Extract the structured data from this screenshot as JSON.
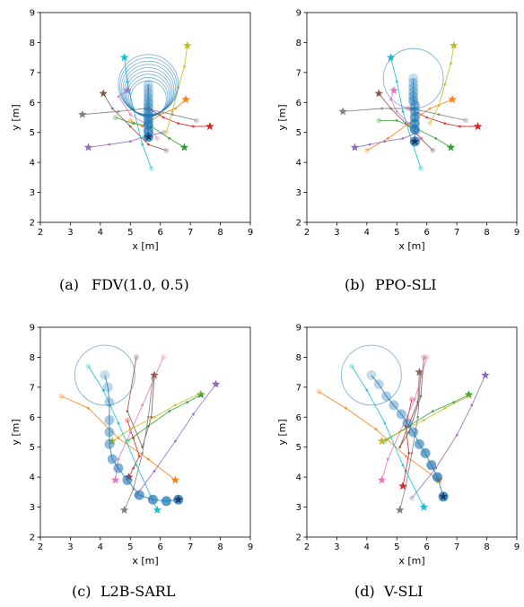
{
  "chart_data": [
    {
      "type": "scatter",
      "caption_tag": "(a)",
      "caption": "FDV(1.0, 0.5)",
      "xlabel": "x [m]",
      "ylabel": "y [m]",
      "xlim": [
        2,
        9
      ],
      "ylim": [
        2,
        9
      ],
      "xticks": [
        "2",
        "3",
        "4",
        "5",
        "6",
        "7",
        "8",
        "9"
      ],
      "yticks": [
        "2",
        "3",
        "4",
        "5",
        "6",
        "7",
        "8",
        "9"
      ],
      "grid": false,
      "robot": {
        "name": "robot",
        "color": "#1f77b4",
        "x": [
          5.6,
          5.6,
          5.6,
          5.6,
          5.6,
          5.6,
          5.6,
          5.6,
          5.6,
          5.6,
          5.6,
          5.6
        ],
        "y": [
          6.6,
          6.45,
          6.3,
          6.15,
          6.0,
          5.85,
          5.7,
          5.55,
          5.4,
          5.25,
          5.05,
          4.85
        ],
        "circles": [
          1.0,
          0.95,
          0.9,
          0.85,
          0.8,
          0.75,
          0.7,
          0.65,
          0.6
        ]
      },
      "agents": [
        {
          "color": "#ff7f0e",
          "x": [
            5.0,
            5.4,
            6.0,
            6.5,
            6.85
          ],
          "y": [
            5.4,
            5.2,
            5.6,
            5.8,
            6.1
          ]
        },
        {
          "color": "#2ca02c",
          "x": [
            4.5,
            5.1,
            5.7,
            6.3,
            6.8
          ],
          "y": [
            5.5,
            5.3,
            5.2,
            4.8,
            4.5
          ]
        },
        {
          "color": "#d62728",
          "x": [
            5.6,
            6.1,
            6.6,
            7.1,
            7.65
          ],
          "y": [
            5.8,
            5.5,
            5.3,
            5.2,
            5.2
          ]
        },
        {
          "color": "#9467bd",
          "x": [
            6.1,
            5.6,
            5.0,
            4.3,
            3.6
          ],
          "y": [
            5.0,
            4.9,
            4.7,
            4.6,
            4.5
          ]
        },
        {
          "color": "#8c564b",
          "x": [
            6.2,
            5.6,
            5.0,
            4.4,
            4.1
          ],
          "y": [
            4.4,
            4.6,
            5.2,
            5.8,
            6.3
          ]
        },
        {
          "color": "#e377c2",
          "x": [
            5.9,
            5.5,
            5.0,
            4.6,
            4.9
          ],
          "y": [
            4.8,
            5.3,
            5.6,
            6.2,
            6.4
          ]
        },
        {
          "color": "#7f7f7f",
          "x": [
            7.2,
            6.4,
            5.5,
            4.6,
            3.4
          ],
          "y": [
            5.4,
            5.6,
            5.8,
            5.7,
            5.6
          ]
        },
        {
          "color": "#bcbd22",
          "x": [
            6.2,
            6.4,
            6.6,
            6.8,
            6.9
          ],
          "y": [
            5.0,
            5.7,
            6.5,
            7.2,
            7.9
          ]
        },
        {
          "color": "#17becf",
          "x": [
            5.7,
            5.4,
            5.1,
            4.9,
            4.8
          ],
          "y": [
            3.8,
            4.6,
            5.8,
            6.7,
            7.5
          ]
        }
      ]
    },
    {
      "type": "scatter",
      "caption_tag": "(b)",
      "caption": "PPO-SLI",
      "xlabel": "x [m]",
      "ylabel": "y [m]",
      "xlim": [
        2,
        9
      ],
      "ylim": [
        2,
        9
      ],
      "xticks": [
        "2",
        "3",
        "4",
        "5",
        "6",
        "7",
        "8",
        "9"
      ],
      "yticks": [
        "2",
        "3",
        "4",
        "5",
        "6",
        "7",
        "8",
        "9"
      ],
      "grid": false,
      "robot": {
        "name": "robot",
        "color": "#1f77b4",
        "x": [
          5.55,
          5.55,
          5.55,
          5.55,
          5.55,
          5.55,
          5.6,
          5.6,
          5.6,
          5.6,
          5.6,
          5.6
        ],
        "y": [
          6.8,
          6.65,
          6.5,
          6.35,
          6.2,
          6.05,
          5.9,
          5.7,
          5.5,
          5.3,
          5.1,
          4.7
        ],
        "circles": [
          1.0
        ]
      },
      "agents": [
        {
          "color": "#ff7f0e",
          "x": [
            4.0,
            4.7,
            5.4,
            6.1,
            6.85
          ],
          "y": [
            4.4,
            4.8,
            5.3,
            5.8,
            6.1
          ]
        },
        {
          "color": "#2ca02c",
          "x": [
            4.4,
            5.0,
            5.7,
            6.3,
            6.8
          ],
          "y": [
            5.4,
            5.4,
            5.1,
            4.8,
            4.5
          ]
        },
        {
          "color": "#d62728",
          "x": [
            5.4,
            6.0,
            6.6,
            7.1,
            7.7
          ],
          "y": [
            5.8,
            5.5,
            5.3,
            5.2,
            5.2
          ]
        },
        {
          "color": "#9467bd",
          "x": [
            5.7,
            5.2,
            4.6,
            4.1,
            3.6
          ],
          "y": [
            5.0,
            4.8,
            4.7,
            4.6,
            4.5
          ]
        },
        {
          "color": "#8c564b",
          "x": [
            6.2,
            5.8,
            5.3,
            4.8,
            4.4
          ],
          "y": [
            4.4,
            4.8,
            5.3,
            5.8,
            6.3
          ]
        },
        {
          "color": "#e377c2",
          "x": [
            5.8,
            5.4,
            5.0,
            4.8,
            4.9
          ],
          "y": [
            4.8,
            5.3,
            5.7,
            6.1,
            6.4
          ]
        },
        {
          "color": "#7f7f7f",
          "x": [
            7.3,
            6.4,
            5.5,
            4.5,
            3.2
          ],
          "y": [
            5.4,
            5.6,
            5.8,
            5.8,
            5.7
          ]
        },
        {
          "color": "#bcbd22",
          "x": [
            6.1,
            6.4,
            6.6,
            6.8,
            6.9
          ],
          "y": [
            5.3,
            5.9,
            6.6,
            7.3,
            7.9
          ]
        },
        {
          "color": "#17becf",
          "x": [
            5.8,
            5.5,
            5.2,
            5.0,
            4.8
          ],
          "y": [
            3.8,
            4.7,
            5.7,
            6.7,
            7.5
          ]
        }
      ]
    },
    {
      "type": "scatter",
      "caption_tag": "(c)",
      "caption": "L2B-SARL",
      "xlabel": "x [m]",
      "ylabel": "y [m]",
      "xlim": [
        2,
        9
      ],
      "ylim": [
        2,
        9
      ],
      "xticks": [
        "2",
        "3",
        "4",
        "5",
        "6",
        "7",
        "8",
        "9"
      ],
      "yticks": [
        "2",
        "3",
        "4",
        "5",
        "6",
        "7",
        "8",
        "9"
      ],
      "grid": false,
      "robot": {
        "name": "robot",
        "color": "#1f77b4",
        "x": [
          4.15,
          4.25,
          4.3,
          4.3,
          4.3,
          4.3,
          4.4,
          4.6,
          4.9,
          5.3,
          5.75,
          6.2,
          6.6
        ],
        "y": [
          7.4,
          7.0,
          6.5,
          5.9,
          5.5,
          5.1,
          4.6,
          4.3,
          3.9,
          3.4,
          3.25,
          3.2,
          3.25
        ],
        "circles": [
          1.0
        ]
      },
      "agents": [
        {
          "color": "#ff7f0e",
          "x": [
            2.7,
            3.6,
            4.6,
            5.6,
            6.5
          ],
          "y": [
            6.7,
            6.3,
            5.3,
            4.6,
            3.9
          ]
        },
        {
          "color": "#2ca02c",
          "x": [
            4.9,
            5.6,
            6.3,
            6.9,
            7.35
          ],
          "y": [
            5.2,
            5.7,
            6.2,
            6.5,
            6.75
          ]
        },
        {
          "color": "#d62728",
          "x": [
            4.9,
            5.1,
            5.3,
            5.1,
            4.95
          ],
          "y": [
            5.9,
            5.3,
            4.7,
            4.3,
            4.0
          ]
        },
        {
          "color": "#9467bd",
          "x": [
            5.2,
            5.8,
            6.5,
            7.1,
            7.85
          ],
          "y": [
            3.4,
            4.2,
            5.2,
            6.1,
            7.1
          ]
        },
        {
          "color": "#8c564b",
          "x": [
            5.2,
            4.9,
            5.4,
            5.7,
            5.8
          ],
          "y": [
            8.0,
            6.2,
            5.0,
            6.0,
            7.4
          ]
        },
        {
          "color": "#e377c2",
          "x": [
            6.1,
            5.4,
            5.0,
            4.6,
            4.5
          ],
          "y": [
            8.0,
            6.4,
            5.5,
            4.6,
            3.9
          ]
        },
        {
          "color": "#7f7f7f",
          "x": [
            5.75,
            5.6,
            5.4,
            5.1,
            4.8
          ],
          "y": [
            7.3,
            6.0,
            4.8,
            3.6,
            2.9
          ]
        },
        {
          "color": "#bcbd22",
          "x": [
            7.35,
            6.5,
            5.8,
            5.0,
            4.4
          ],
          "y": [
            6.8,
            6.4,
            6.0,
            5.6,
            5.2
          ]
        },
        {
          "color": "#17becf",
          "x": [
            3.6,
            4.1,
            4.6,
            5.2,
            5.9
          ],
          "y": [
            7.7,
            6.9,
            5.8,
            4.4,
            2.9
          ]
        }
      ]
    },
    {
      "type": "scatter",
      "caption_tag": "(d)",
      "caption": "V-SLI",
      "xlabel": "x [m]",
      "ylabel": "y [m]",
      "xlim": [
        2,
        9
      ],
      "ylim": [
        2,
        9
      ],
      "xticks": [
        "2",
        "3",
        "4",
        "5",
        "6",
        "7",
        "8",
        "9"
      ],
      "yticks": [
        "2",
        "3",
        "4",
        "5",
        "6",
        "7",
        "8",
        "9"
      ],
      "grid": false,
      "robot": {
        "name": "robot",
        "color": "#1f77b4",
        "x": [
          4.15,
          4.4,
          4.65,
          4.9,
          5.15,
          5.35,
          5.55,
          5.75,
          5.95,
          6.15,
          6.35,
          6.55
        ],
        "y": [
          7.4,
          7.1,
          6.7,
          6.4,
          6.1,
          5.8,
          5.5,
          5.1,
          4.8,
          4.4,
          4.0,
          3.35
        ],
        "circles": [
          1.0
        ]
      },
      "agents": [
        {
          "color": "#ff7f0e",
          "x": [
            2.4,
            3.3,
            4.3,
            5.3,
            6.4
          ],
          "y": [
            6.85,
            6.3,
            5.6,
            4.7,
            3.9
          ]
        },
        {
          "color": "#2ca02c",
          "x": [
            4.6,
            5.4,
            6.2,
            6.9,
            7.4
          ],
          "y": [
            5.2,
            5.7,
            6.2,
            6.5,
            6.75
          ]
        },
        {
          "color": "#d62728",
          "x": [
            5.5,
            5.3,
            5.4,
            5.3,
            5.2
          ],
          "y": [
            6.6,
            5.7,
            4.8,
            4.2,
            3.7
          ]
        },
        {
          "color": "#9467bd",
          "x": [
            5.5,
            6.3,
            7.0,
            7.5,
            7.95
          ],
          "y": [
            3.3,
            4.3,
            5.4,
            6.4,
            7.4
          ]
        },
        {
          "color": "#8c564b",
          "x": [
            5.9,
            5.8,
            5.4,
            5.1,
            5.7,
            5.75
          ],
          "y": [
            8.0,
            6.7,
            5.5,
            5.0,
            6.5,
            7.5
          ]
        },
        {
          "color": "#e377c2",
          "x": [
            6.0,
            5.6,
            5.1,
            4.7,
            4.5
          ],
          "y": [
            8.0,
            6.6,
            5.5,
            4.6,
            3.9
          ]
        },
        {
          "color": "#7f7f7f",
          "x": [
            5.8,
            5.7,
            5.5,
            5.3,
            5.1
          ],
          "y": [
            7.5,
            6.0,
            4.8,
            3.7,
            2.9
          ]
        },
        {
          "color": "#bcbd22",
          "x": [
            7.4,
            6.6,
            5.9,
            5.1,
            4.5
          ],
          "y": [
            6.7,
            6.3,
            5.9,
            5.5,
            5.2
          ]
        },
        {
          "color": "#17becf",
          "x": [
            3.5,
            4.0,
            4.6,
            5.2,
            5.9
          ],
          "y": [
            7.7,
            6.9,
            5.8,
            4.4,
            3.0
          ]
        }
      ]
    }
  ]
}
